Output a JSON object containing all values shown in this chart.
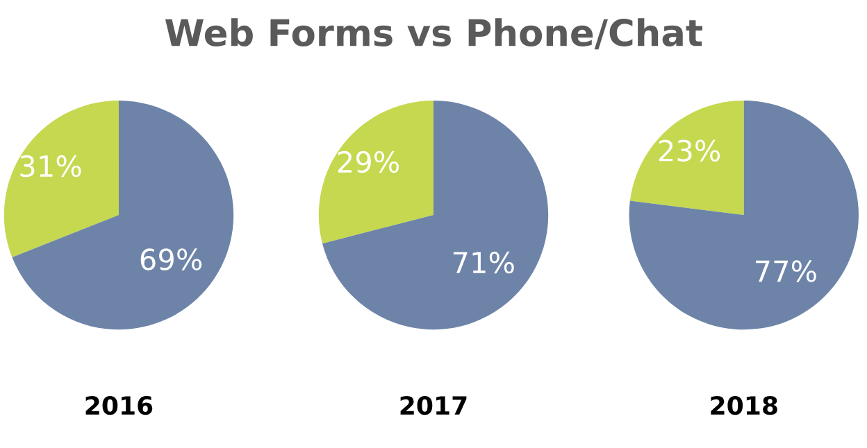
{
  "chart_data": [
    {
      "type": "pie",
      "title": "Web Forms vs Phone/Chat",
      "xlabel": "2016",
      "categories": [
        null,
        null
      ],
      "values": [
        31,
        69
      ],
      "value_labels": [
        "31%",
        "69%"
      ],
      "colors": [
        "#c5d84f",
        "#6d84a8"
      ]
    },
    {
      "type": "pie",
      "xlabel": "2017",
      "categories": [
        null,
        null
      ],
      "values": [
        29,
        71
      ],
      "value_labels": [
        "29%",
        "71%"
      ],
      "colors": [
        "#c5d84f",
        "#6d84a8"
      ]
    },
    {
      "type": "pie",
      "xlabel": "2018",
      "categories": [
        null,
        null
      ],
      "values": [
        23,
        77
      ],
      "value_labels": [
        "23%",
        "77%"
      ],
      "colors": [
        "#c5d84f",
        "#6d84a8"
      ]
    }
  ]
}
